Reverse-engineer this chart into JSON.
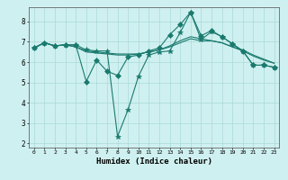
{
  "title": "",
  "xlabel": "Humidex (Indice chaleur)",
  "ylabel": "",
  "background_color": "#cff0f0",
  "grid_color": "#aad8d8",
  "line_color": "#1a7a6e",
  "xlim": [
    -0.5,
    23.5
  ],
  "ylim": [
    1.8,
    8.7
  ],
  "yticks": [
    2,
    3,
    4,
    5,
    6,
    7,
    8
  ],
  "xticks": [
    0,
    1,
    2,
    3,
    4,
    5,
    6,
    7,
    8,
    9,
    10,
    11,
    12,
    13,
    14,
    15,
    16,
    17,
    18,
    19,
    20,
    21,
    22,
    23
  ],
  "series": [
    {
      "x": [
        0,
        1,
        2,
        3,
        4,
        5,
        6,
        7,
        8,
        9,
        10,
        11,
        12,
        13,
        14,
        15,
        16,
        17,
        18,
        19,
        20,
        21,
        22,
        23
      ],
      "y": [
        6.7,
        6.95,
        6.8,
        6.85,
        6.85,
        6.6,
        6.55,
        6.55,
        2.35,
        3.65,
        5.3,
        6.35,
        6.5,
        6.55,
        7.45,
        8.45,
        7.1,
        7.5,
        7.25,
        6.9,
        6.55,
        5.85,
        5.85,
        5.75
      ],
      "marker": "*",
      "markersize": 4
    },
    {
      "x": [
        0,
        1,
        2,
        3,
        4,
        5,
        6,
        7,
        8,
        9,
        10,
        11,
        12,
        13,
        14,
        15,
        16,
        17,
        18,
        19,
        20,
        21,
        22,
        23
      ],
      "y": [
        6.7,
        6.95,
        6.8,
        6.85,
        6.85,
        5.05,
        6.1,
        5.55,
        5.35,
        6.25,
        6.35,
        6.55,
        6.7,
        7.35,
        7.85,
        8.45,
        7.3,
        7.55,
        7.25,
        6.9,
        6.55,
        5.85,
        5.85,
        5.75
      ],
      "marker": "D",
      "markersize": 3
    },
    {
      "x": [
        0,
        1,
        2,
        3,
        4,
        5,
        6,
        7,
        8,
        9,
        10,
        11,
        12,
        13,
        14,
        15,
        16,
        17,
        18,
        19,
        20,
        21,
        22,
        23
      ],
      "y": [
        6.7,
        6.95,
        6.8,
        6.85,
        6.75,
        6.55,
        6.5,
        6.45,
        6.4,
        6.4,
        6.4,
        6.5,
        6.6,
        6.8,
        7.05,
        7.25,
        7.15,
        7.05,
        6.95,
        6.75,
        6.55,
        6.3,
        6.1,
        5.95
      ],
      "marker": null,
      "markersize": 0
    },
    {
      "x": [
        0,
        1,
        2,
        3,
        4,
        5,
        6,
        7,
        8,
        9,
        10,
        11,
        12,
        13,
        14,
        15,
        16,
        17,
        18,
        19,
        20,
        21,
        22,
        23
      ],
      "y": [
        6.7,
        6.95,
        6.8,
        6.85,
        6.75,
        6.5,
        6.45,
        6.4,
        6.35,
        6.35,
        6.4,
        6.5,
        6.6,
        6.75,
        6.95,
        7.15,
        7.05,
        7.05,
        6.95,
        6.75,
        6.6,
        6.35,
        6.15,
        5.95
      ],
      "marker": null,
      "markersize": 0
    }
  ]
}
